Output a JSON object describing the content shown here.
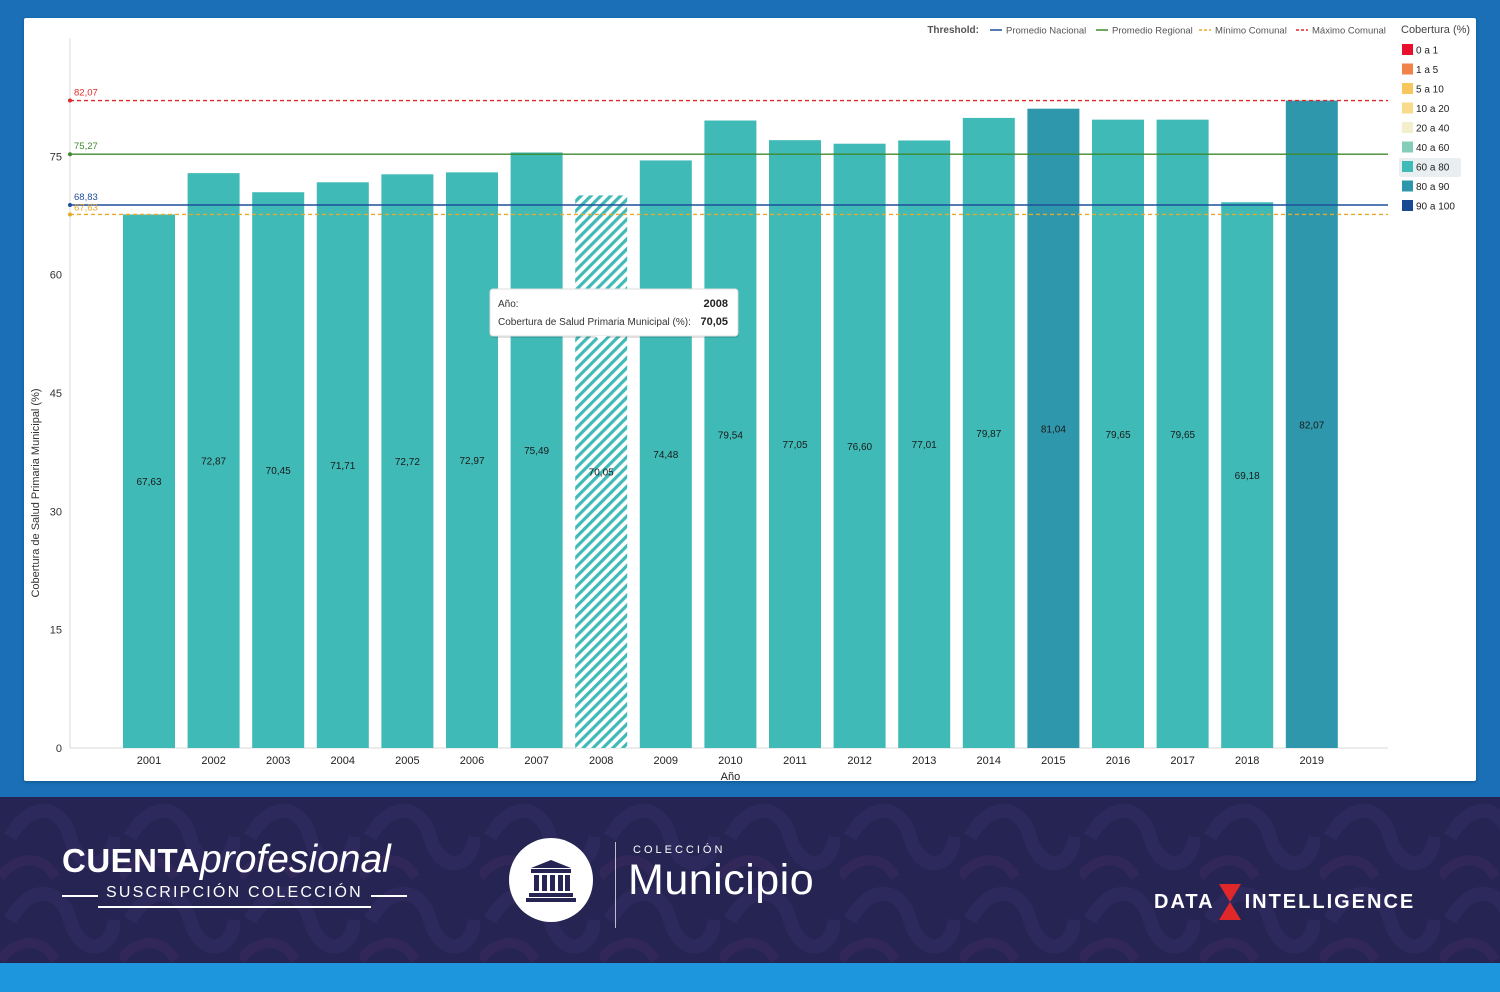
{
  "chart_data": {
    "type": "bar",
    "xlabel": "Año",
    "ylabel": "Cobertura de Salud Primaria Municipal (%)",
    "ylim": [
      0,
      90
    ],
    "yticks": [
      0,
      15,
      30,
      45,
      60,
      75
    ],
    "grid": false,
    "categories": [
      "2001",
      "2002",
      "2003",
      "2004",
      "2005",
      "2006",
      "2007",
      "2008",
      "2009",
      "2010",
      "2011",
      "2012",
      "2013",
      "2014",
      "2015",
      "2016",
      "2017",
      "2018",
      "2019"
    ],
    "values": [
      67.63,
      72.87,
      70.45,
      71.71,
      72.72,
      72.97,
      75.49,
      70.05,
      74.48,
      79.54,
      77.05,
      76.6,
      77.01,
      79.87,
      81.04,
      79.65,
      79.65,
      69.18,
      82.07
    ],
    "value_labels": [
      "67,63",
      "72,87",
      "70,45",
      "71,71",
      "72,72",
      "72,97",
      "75,49",
      "70,05",
      "74,48",
      "79,54",
      "77,05",
      "76,60",
      "77,01",
      "79,87",
      "81,04",
      "79,65",
      "79,65",
      "69,18",
      "82,07"
    ],
    "highlighted_category": "2008",
    "thresholds_title": "Threshold:",
    "thresholds": [
      {
        "name": "Promedio Nacional",
        "value": 68.83,
        "label": "68,83",
        "color": "#1f4e9c",
        "style": "solid"
      },
      {
        "name": "Promedio Regional",
        "value": 75.27,
        "label": "75,27",
        "color": "#3f8a2e",
        "style": "solid"
      },
      {
        "name": "Mínimo Comunal",
        "value": 67.63,
        "label": "67,63",
        "color": "#e8a92a",
        "style": "dashed"
      },
      {
        "name": "Máximo Comunal",
        "value": 82.07,
        "label": "82,07",
        "color": "#e0282b",
        "style": "dashed"
      }
    ],
    "color_scale_title": "Cobertura (%)",
    "color_scale": [
      {
        "label": "0 a 1",
        "color": "#e8102c",
        "min": 0,
        "max": 1
      },
      {
        "label": "1 a 5",
        "color": "#f0824a",
        "min": 1,
        "max": 5
      },
      {
        "label": "5 a 10",
        "color": "#f7c75e",
        "min": 5,
        "max": 10
      },
      {
        "label": "10 a 20",
        "color": "#f8dc8c",
        "min": 10,
        "max": 20
      },
      {
        "label": "20 a 40",
        "color": "#f3efcc",
        "min": 20,
        "max": 40
      },
      {
        "label": "40 a 60",
        "color": "#86cdb9",
        "min": 40,
        "max": 60
      },
      {
        "label": "60 a 80",
        "color": "#3fbab7",
        "min": 60,
        "max": 80
      },
      {
        "label": "80 a 90",
        "color": "#2f97ab",
        "min": 80,
        "max": 90
      },
      {
        "label": "90 a 100",
        "color": "#174a93",
        "min": 90,
        "max": 100
      }
    ],
    "active_scale_label": "60 a 80",
    "legend_placement": "right",
    "tooltip": {
      "rows": [
        {
          "key": "Año:",
          "value": "2008"
        },
        {
          "key": "Cobertura de Salud Primaria Municipal (%):",
          "value": "70,05"
        }
      ]
    }
  },
  "footer": {
    "brand_bold": "CUENTA",
    "brand_italic": "profesional",
    "brand_sub": "SUSCRIPCIÓN COLECCIÓN",
    "collection_small": "COLECCIÓN",
    "collection_name": "Municipio",
    "partner_left": "DATA",
    "partner_right": "INTELLIGENCE"
  },
  "colors": {
    "frame_blue": "#1a6fb7",
    "footer_navy": "#262452",
    "footer_strip": "#1d96de"
  }
}
